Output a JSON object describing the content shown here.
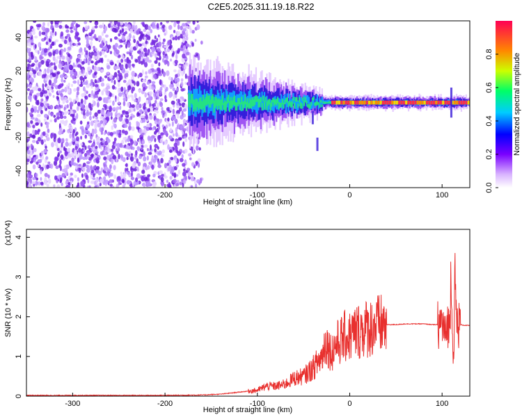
{
  "figure": {
    "title": "C2E5.2025.311.19.18.R22"
  },
  "colors": {
    "snr_line": "#e8302e",
    "noise_purple": "#6a1fd8",
    "axis": "#000000"
  },
  "chart_data": [
    {
      "type": "heatmap",
      "xlabel": "Height of straight line (km)",
      "ylabel": "Frequency (Hz)",
      "xlim": [
        -350,
        130
      ],
      "ylim": [
        -50,
        50
      ],
      "x_ticks": [
        -300,
        -200,
        -100,
        0,
        100
      ],
      "y_ticks": [
        -40,
        -20,
        0,
        20,
        40
      ],
      "colorbar": {
        "label": "Normalized spectral amplitude",
        "range": [
          0,
          1
        ],
        "ticks": [
          "0.0",
          "0.2",
          "0.4",
          "0.6",
          "0.8"
        ],
        "colormap": "rainbow"
      },
      "regions": {
        "noise_x_range": [
          -350,
          -160
        ],
        "signal_x_range": [
          -175,
          130
        ],
        "signal_center_freq": 1
      }
    },
    {
      "type": "line",
      "xlabel": "Height of straight line (km)",
      "ylabel": "SNR (10 * v/v)",
      "y_scale_label": "(x10^4)",
      "xlim": [
        -350,
        130
      ],
      "ylim": [
        0,
        4.2
      ],
      "x_ticks": [
        -300,
        -200,
        -100,
        0,
        100
      ],
      "y_ticks": [
        0,
        1,
        2,
        3,
        4
      ],
      "series": [
        {
          "x": [
            -350,
            -300,
            -250,
            -200,
            -160,
            -140,
            -120,
            -100,
            -90,
            -80,
            -70,
            -60,
            -50,
            -40,
            -35,
            -30,
            -26,
            -22,
            -20,
            -15,
            -10,
            -5,
            0,
            5,
            10,
            20,
            30,
            40,
            50,
            60,
            70,
            80,
            90,
            95,
            100,
            104,
            106,
            108,
            110,
            112,
            114,
            116,
            120,
            125,
            130
          ],
          "y": [
            0.02,
            0.02,
            0.02,
            0.02,
            0.03,
            0.05,
            0.1,
            0.15,
            0.25,
            0.25,
            0.3,
            0.45,
            0.5,
            0.7,
            0.85,
            1.0,
            1.4,
            1.2,
            1.1,
            1.3,
            1.4,
            1.5,
            1.5,
            1.6,
            1.65,
            1.72,
            1.78,
            1.8,
            1.8,
            1.82,
            1.82,
            1.82,
            1.8,
            1.8,
            1.85,
            1.5,
            1.9,
            1.6,
            3.5,
            0.7,
            2.8,
            1.8,
            1.8,
            1.78,
            1.78
          ]
        }
      ]
    }
  ]
}
